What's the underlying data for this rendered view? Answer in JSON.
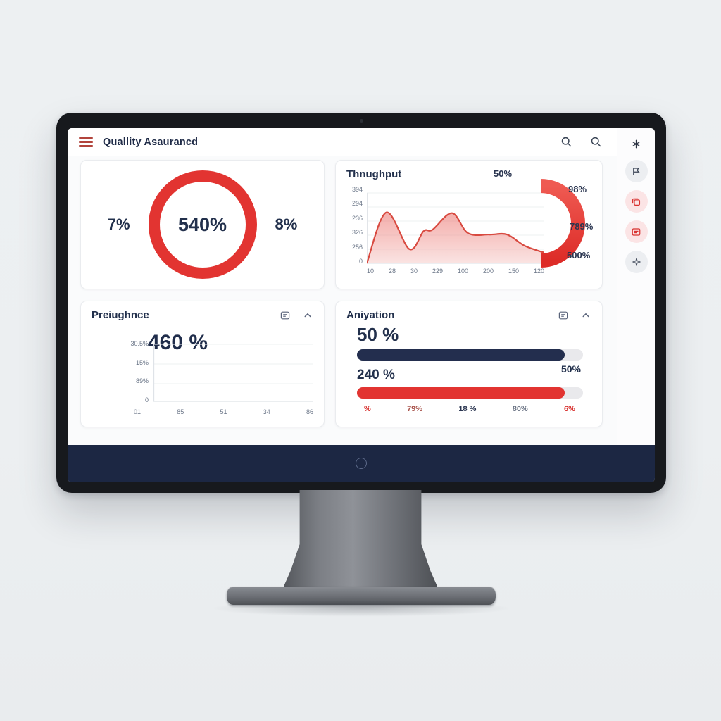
{
  "header": {
    "title": "Quallity Asaurancd",
    "menu_icon": "hamburger-icon",
    "icons": [
      "search-icon",
      "search-icon"
    ]
  },
  "rail": {
    "icons": [
      "asterisk-icon",
      "flag-icon",
      "copy-icon",
      "note-icon",
      "sparkle-icon"
    ]
  },
  "colors": {
    "accent_red": "#e23431",
    "navy": "#22304c",
    "footer_navy": "#1c2743"
  },
  "cards": {
    "completion": {
      "left_value": "7%",
      "center_value": "540%",
      "right_value": "8%"
    },
    "throughput": {
      "title": "Thnughput",
      "y_ticks": [
        "394",
        "294",
        "236",
        "326",
        "256",
        "0"
      ],
      "x_ticks": [
        "10",
        "28",
        "30",
        "229",
        "100",
        "200",
        "150",
        "120"
      ],
      "gauge_labels": [
        "50%",
        "98%",
        "789%",
        "500%"
      ]
    },
    "performance": {
      "title": "Preiughnce",
      "big_value": "460 %",
      "y_ticks": [
        "30.5%",
        "15%",
        "89%",
        "0"
      ],
      "x_ticks": [
        "01",
        "85",
        "51",
        "34",
        "86"
      ]
    },
    "animation": {
      "title": "Aniyation",
      "metric1_value": "50 %",
      "metric1_end_label": "50%",
      "metric1_pct": 92,
      "metric2_value": "240 %",
      "metric2_pct": 92,
      "bottom_labels": [
        "%",
        "79%",
        "18 %",
        "80%",
        "6%"
      ]
    }
  },
  "chart_data": [
    {
      "type": "donut",
      "center_label": "540%",
      "side_labels": [
        "7%",
        "8%"
      ],
      "color": "#e23431",
      "value_fraction": 1.0
    },
    {
      "type": "area",
      "title": "Thnughput",
      "y_tick_labels": [
        "394",
        "294",
        "236",
        "326",
        "256",
        "0"
      ],
      "x_tick_labels": [
        "10",
        "28",
        "30",
        "229",
        "100",
        "200",
        "150",
        "120"
      ],
      "ylim": [
        0,
        394
      ],
      "color": "#d84a40",
      "points": [
        {
          "x": 0,
          "v": 0
        },
        {
          "x": 11,
          "v": 285
        },
        {
          "x": 24,
          "v": 79
        },
        {
          "x": 32,
          "v": 180
        },
        {
          "x": 37,
          "v": 188
        },
        {
          "x": 48,
          "v": 281
        },
        {
          "x": 57,
          "v": 169
        },
        {
          "x": 69,
          "v": 161
        },
        {
          "x": 79,
          "v": 161
        },
        {
          "x": 89,
          "v": 98
        },
        {
          "x": 100,
          "v": 60
        }
      ],
      "gauge": {
        "type": "half-donut",
        "color": "#e23431",
        "labels": [
          "50%",
          "98%",
          "789%",
          "500%"
        ]
      }
    },
    {
      "type": "line",
      "title": "Preiughnce",
      "big_value": "460 %",
      "y_tick_labels": [
        "30.5%",
        "15%",
        "89%",
        "0"
      ],
      "x_tick_labels": [
        "01",
        "85",
        "51",
        "34",
        "86"
      ],
      "series": [],
      "grid": true
    },
    {
      "type": "progress-bars",
      "title": "Aniyation",
      "bars": [
        {
          "label": "50 %",
          "value_pct": 92,
          "color": "#232e4e",
          "end_label": "50%"
        },
        {
          "label": "240 %",
          "value_pct": 92,
          "color": "#e23431"
        }
      ],
      "x_labels": [
        "%",
        "79%",
        "18 %",
        "80%",
        "6%"
      ]
    }
  ]
}
